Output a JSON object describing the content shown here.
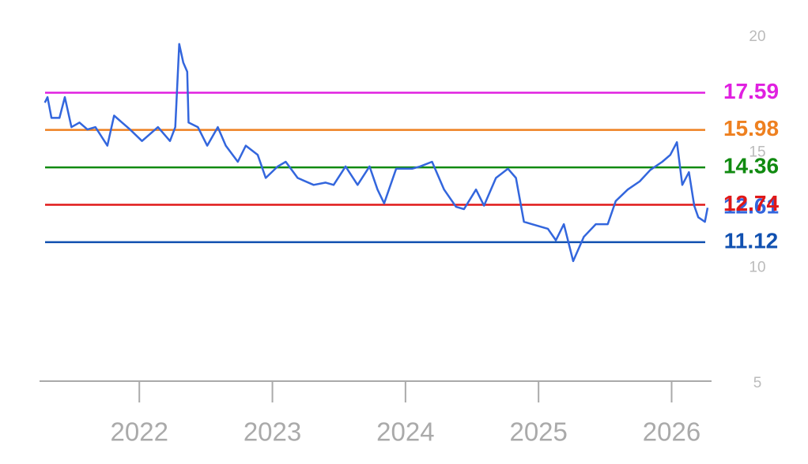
{
  "chart_data": {
    "type": "line",
    "x": [
      2021.29,
      2021.31,
      2021.34,
      2021.4,
      2021.44,
      2021.49,
      2021.55,
      2021.61,
      2021.67,
      2021.76,
      2021.81,
      2021.87,
      2021.93,
      2022.02,
      2022.14,
      2022.23,
      2022.27,
      2022.3,
      2022.33,
      2022.36,
      2022.37,
      2022.44,
      2022.51,
      2022.59,
      2022.65,
      2022.74,
      2022.8,
      2022.89,
      2022.95,
      2023.04,
      2023.1,
      2023.19,
      2023.31,
      2023.4,
      2023.46,
      2023.55,
      2023.64,
      2023.73,
      2023.79,
      2023.84,
      2023.93,
      2024.05,
      2024.11,
      2024.2,
      2024.29,
      2024.38,
      2024.44,
      2024.53,
      2024.59,
      2024.68,
      2024.77,
      2024.83,
      2024.89,
      2024.95,
      2025.07,
      2025.13,
      2025.19,
      2025.26,
      2025.34,
      2025.43,
      2025.52,
      2025.58,
      2025.67,
      2025.76,
      2025.84,
      2025.93,
      2025.99,
      2026.04,
      2026.08,
      2026.13,
      2026.17,
      2026.2,
      2026.25,
      2026.27
    ],
    "series": [
      {
        "color": "#3366dd",
        "values": [
          17.16,
          17.4,
          16.5,
          16.5,
          17.4,
          16.1,
          16.3,
          16.0,
          16.1,
          15.3,
          16.6,
          16.3,
          16.0,
          15.5,
          16.1,
          15.5,
          16.1,
          19.7,
          18.9,
          18.5,
          16.3,
          16.1,
          15.3,
          16.1,
          15.3,
          14.6,
          15.3,
          14.9,
          13.9,
          14.4,
          14.6,
          13.9,
          13.6,
          13.7,
          13.6,
          14.4,
          13.6,
          14.4,
          13.4,
          12.8,
          14.3,
          14.3,
          14.4,
          14.6,
          13.4,
          12.65,
          12.55,
          13.4,
          12.7,
          13.9,
          14.3,
          13.9,
          12.0,
          11.9,
          11.7,
          11.2,
          11.9,
          10.3,
          11.35,
          11.9,
          11.9,
          12.9,
          13.4,
          13.75,
          14.25,
          14.6,
          14.9,
          15.45,
          13.6,
          14.15,
          12.7,
          12.2,
          12.0,
          12.61
        ]
      }
    ],
    "reference_lines": [
      {
        "value": 17.59,
        "color": "#e020e0"
      },
      {
        "value": 15.98,
        "color": "#ee8020"
      },
      {
        "value": 14.36,
        "color": "#108a10"
      },
      {
        "value": 12.74,
        "color": "#e01818"
      },
      {
        "value": 11.12,
        "color": "#1050b0"
      }
    ],
    "xlim": [
      2021.25,
      2026.3
    ],
    "xticks": [
      2022,
      2023,
      2024,
      2025,
      2026
    ],
    "ylim": [
      5,
      20
    ],
    "yticks": [
      5,
      10,
      15,
      20
    ],
    "grid": false
  }
}
